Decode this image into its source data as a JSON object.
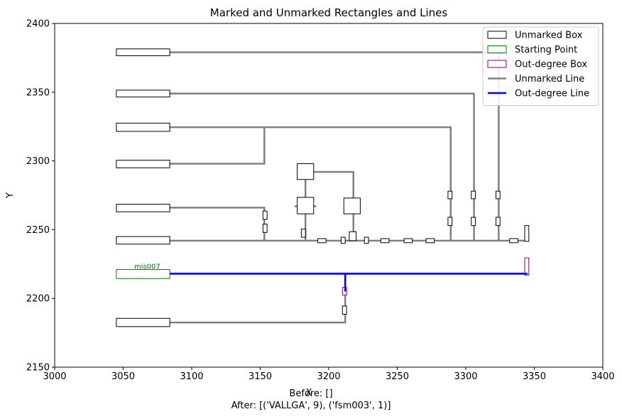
{
  "chart_data": {
    "type": "scatter",
    "title": "Marked and Unmarked Rectangles and Lines",
    "xlabel": "X",
    "ylabel": "Y",
    "xlim": [
      3000,
      3400
    ],
    "ylim": [
      2150,
      2400
    ],
    "xticks": [
      "3000",
      "3050",
      "3100",
      "3150",
      "3200",
      "3250",
      "3300",
      "3350",
      "3400"
    ],
    "yticks": [
      "2150",
      "2200",
      "2250",
      "2300",
      "2350",
      "2400"
    ],
    "grid": false,
    "legend_position": "top-right",
    "legend": [
      {
        "label": "Unmarked Box",
        "kind": "box",
        "edge": "#000000"
      },
      {
        "label": "Starting Point",
        "kind": "box",
        "edge": "#008000"
      },
      {
        "label": "Out-degree Box",
        "kind": "box",
        "edge": "#800080"
      },
      {
        "label": "Unmarked Line",
        "kind": "line",
        "color": "#808080"
      },
      {
        "label": "Out-degree Line",
        "kind": "line",
        "color": "#0000ff"
      }
    ],
    "unmarked_boxes": [
      {
        "x0": 3045,
        "x1": 3084,
        "y0": 2376.5,
        "y1": 2381.5
      },
      {
        "x0": 3045,
        "x1": 3084,
        "y0": 2346.5,
        "y1": 2351.5
      },
      {
        "x0": 3045,
        "x1": 3084,
        "y0": 2321.5,
        "y1": 2327.5
      },
      {
        "x0": 3045,
        "x1": 3084,
        "y0": 2295,
        "y1": 2300.5
      },
      {
        "x0": 3045,
        "x1": 3084,
        "y0": 2263,
        "y1": 2268.5
      },
      {
        "x0": 3045,
        "x1": 3084,
        "y0": 2239.5,
        "y1": 2245
      },
      {
        "x0": 3045,
        "x1": 3084,
        "y0": 2179.5,
        "y1": 2185.5
      },
      {
        "x0": 3177,
        "x1": 3189,
        "y0": 2286.5,
        "y1": 2298
      },
      {
        "x0": 3177,
        "x1": 3189,
        "y0": 2261.5,
        "y1": 2273.5
      },
      {
        "x0": 3211,
        "x1": 3223,
        "y0": 2261.5,
        "y1": 2273
      },
      {
        "x0": 3152,
        "x1": 3155,
        "y0": 2257.5,
        "y1": 2263.5
      },
      {
        "x0": 3152,
        "x1": 3155,
        "y0": 2248,
        "y1": 2254
      },
      {
        "x0": 3180,
        "x1": 3183,
        "y0": 2244.5,
        "y1": 2250.5
      },
      {
        "x0": 3192,
        "x1": 3198,
        "y0": 2240.5,
        "y1": 2243.5
      },
      {
        "x0": 3209,
        "x1": 3212,
        "y0": 2240,
        "y1": 2244.5
      },
      {
        "x0": 3215,
        "x1": 3220,
        "y0": 2242,
        "y1": 2248.5
      },
      {
        "x0": 3226,
        "x1": 3229,
        "y0": 2240,
        "y1": 2244.5
      },
      {
        "x0": 3238,
        "x1": 3244,
        "y0": 2240.5,
        "y1": 2243.5
      },
      {
        "x0": 3255,
        "x1": 3261,
        "y0": 2240.5,
        "y1": 2243.5
      },
      {
        "x0": 3271,
        "x1": 3277,
        "y0": 2240.5,
        "y1": 2243.5
      },
      {
        "x0": 3287,
        "x1": 3290,
        "y0": 2272.5,
        "y1": 2278
      },
      {
        "x0": 3287,
        "x1": 3290,
        "y0": 2253,
        "y1": 2259
      },
      {
        "x0": 3304,
        "x1": 3307,
        "y0": 2272.5,
        "y1": 2278
      },
      {
        "x0": 3304,
        "x1": 3307,
        "y0": 2253,
        "y1": 2259
      },
      {
        "x0": 3322,
        "x1": 3325,
        "y0": 2272.5,
        "y1": 2278
      },
      {
        "x0": 3322,
        "x1": 3325,
        "y0": 2253,
        "y1": 2259
      },
      {
        "x0": 3332,
        "x1": 3338,
        "y0": 2240.5,
        "y1": 2243.5
      },
      {
        "x0": 3343,
        "x1": 3346,
        "y0": 2241.5,
        "y1": 2253
      },
      {
        "x0": 3210,
        "x1": 3213,
        "y0": 2188.5,
        "y1": 2194.5
      }
    ],
    "starting_box": {
      "x0": 3045,
      "x1": 3084,
      "y0": 2214.5,
      "y1": 2221,
      "label": "mis007"
    },
    "outdegree_boxes": [
      {
        "x0": 3343,
        "x1": 3346,
        "y0": 2217,
        "y1": 2229.5
      },
      {
        "x0": 3210,
        "x1": 3213,
        "y0": 2202.5,
        "y1": 2208
      }
    ],
    "unmarked_lines": [
      [
        [
          3084,
          2379
        ],
        [
          3324,
          2379
        ],
        [
          3324,
          2242
        ]
      ],
      [
        [
          3084,
          2349
        ],
        [
          3306,
          2349
        ],
        [
          3306,
          2242
        ]
      ],
      [
        [
          3084,
          2324.5
        ],
        [
          3289,
          2324.5
        ],
        [
          3289,
          2242
        ]
      ],
      [
        [
          3153,
          2324.5
        ],
        [
          3153,
          2298
        ],
        [
          3084,
          2298
        ]
      ],
      [
        [
          3084,
          2266
        ],
        [
          3153,
          2266
        ],
        [
          3153,
          2242
        ]
      ],
      [
        [
          3084,
          2242
        ],
        [
          3345,
          2242
        ]
      ],
      [
        [
          3183,
          2292
        ],
        [
          3183,
          2242
        ]
      ],
      [
        [
          3183,
          2292
        ],
        [
          3218,
          2292
        ],
        [
          3218,
          2245
        ]
      ],
      [
        [
          3175,
          2267
        ],
        [
          3191,
          2267
        ]
      ],
      [
        [
          3084,
          2182.5
        ],
        [
          3212,
          2182.5
        ],
        [
          3212,
          2205
        ]
      ]
    ],
    "outdegree_lines": [
      [
        [
          3084,
          2218
        ],
        [
          3345,
          2218
        ]
      ],
      [
        [
          3212,
          2218
        ],
        [
          3212,
          2205
        ]
      ]
    ],
    "captions": {
      "before": "Before: []",
      "after": "After: [('VALLGA', 9), ('fsm003', 1)]"
    }
  }
}
